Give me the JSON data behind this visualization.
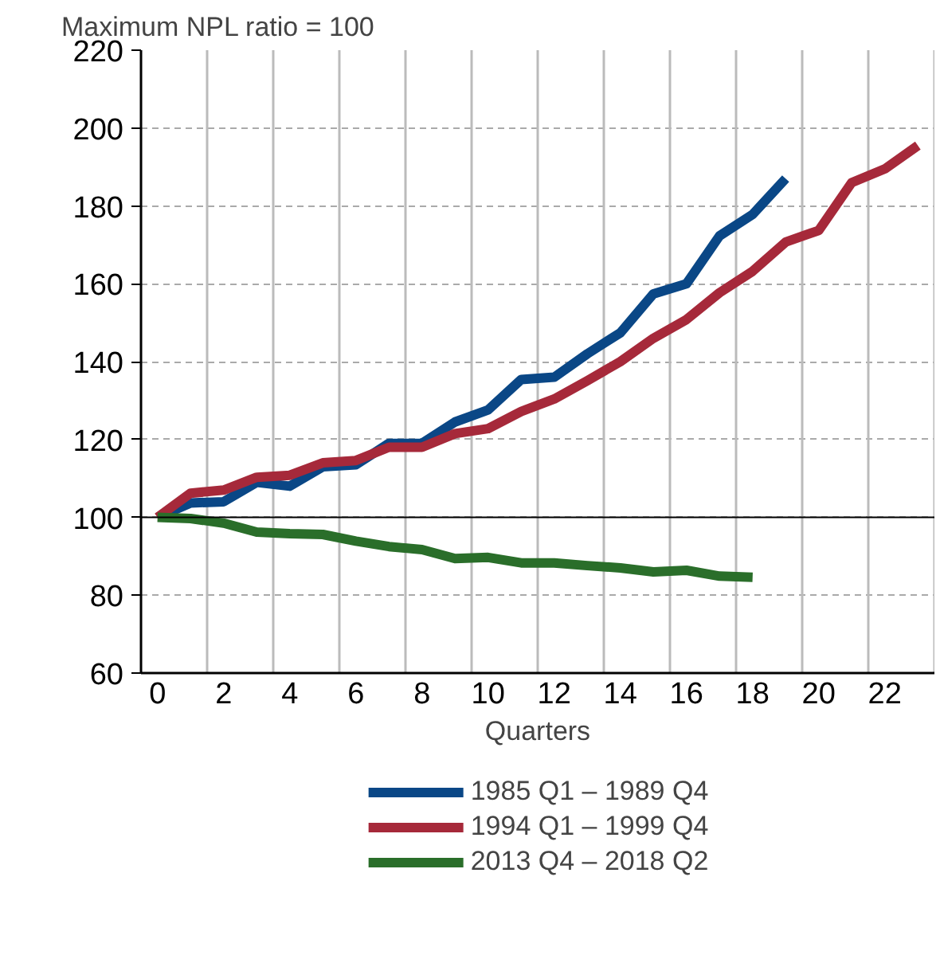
{
  "chart_data": {
    "type": "line",
    "ylabel": "Maximum NPL ratio = 100",
    "xlabel": "Quarters",
    "x": [
      0,
      1,
      2,
      3,
      4,
      5,
      6,
      7,
      8,
      9,
      10,
      11,
      12,
      13,
      14,
      15,
      16,
      17,
      18,
      19,
      20,
      21,
      22,
      23
    ],
    "series": [
      {
        "name": "1985 Q1 – 1989 Q4",
        "color": "#0a4786",
        "values": [
          100,
          103.7,
          104,
          109,
          108,
          113,
          113.5,
          119,
          119,
          124.5,
          127.6,
          135.4,
          136,
          142,
          147.4,
          157.4,
          160,
          172.3,
          177.8,
          187,
          null,
          null,
          null,
          null
        ]
      },
      {
        "name": "1994 Q1 – 1999 Q4",
        "color": "#a6293a",
        "values": [
          100,
          106.2,
          107,
          110.3,
          110.8,
          114,
          114.6,
          118,
          118,
          121.5,
          122.8,
          127.2,
          130.4,
          135.1,
          140,
          146,
          150.8,
          157.7,
          163.2,
          170.7,
          173.7,
          186,
          189.5,
          195.5
        ]
      },
      {
        "name": "2013 Q4 – 2018 Q2",
        "color": "#2a6e2a",
        "values": [
          100,
          99.7,
          98.5,
          96.2,
          95.8,
          95.6,
          93.9,
          92.5,
          91.7,
          89.4,
          89.7,
          88.3,
          88.3,
          87.6,
          87,
          86,
          86.4,
          84.9,
          84.6,
          null,
          null,
          null,
          null,
          null
        ]
      }
    ],
    "xlim": [
      -0.5,
      23.5
    ],
    "xticks": [
      0,
      2,
      4,
      6,
      8,
      10,
      12,
      14,
      16,
      18,
      20,
      22,
      {
        "value": 1.5,
        "label": null
      },
      {
        "value": 3.5,
        "label": null
      },
      {
        "value": 5.5,
        "label": null
      },
      {
        "value": 7.5,
        "label": null
      },
      {
        "value": 9.5,
        "label": null
      },
      {
        "value": 11.5,
        "label": null
      },
      {
        "value": 13.5,
        "label": null
      },
      {
        "value": 15.5,
        "label": null
      },
      {
        "value": 17.5,
        "label": null
      },
      {
        "value": 19.5,
        "label": null
      },
      {
        "value": 21.5,
        "label": null
      },
      {
        "value": 23.5,
        "label": null
      }
    ],
    "ylim": [
      60,
      220
    ],
    "yticks": [
      60,
      80,
      100,
      120,
      140,
      160,
      180,
      200,
      220
    ],
    "ref_lines": [
      {
        "axis": "y",
        "value": 100,
        "color": "#000000"
      }
    ],
    "grid": true,
    "legend": "bottom",
    "line_style": "solid"
  }
}
